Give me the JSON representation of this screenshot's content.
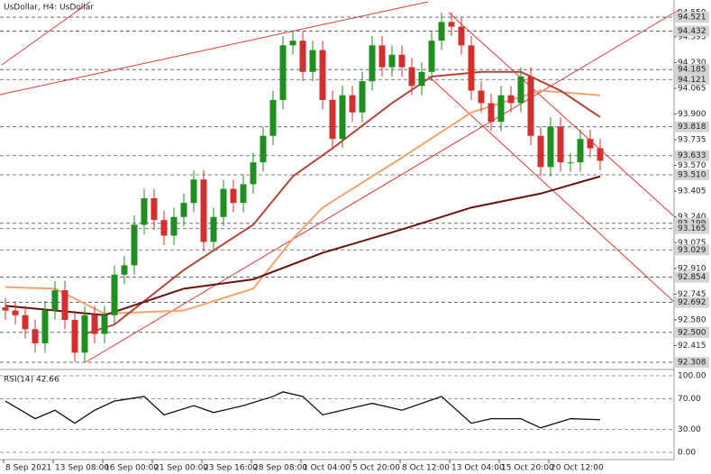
{
  "chart_data": {
    "type": "candlestick",
    "title": "UsDollar, H4:  UsDollar",
    "categories": [
      "8 Sep 2021",
      null,
      null,
      null,
      null,
      "13 Sep 08:00",
      null,
      null,
      null,
      null,
      "16 Sep 00:00",
      null,
      null,
      null,
      null,
      "21 Sep 00:00",
      null,
      null,
      null,
      null,
      "23 Sep 16:00",
      null,
      null,
      null,
      null,
      "28 Sep 08:00",
      null,
      null,
      null,
      null,
      "1 Oct 04:00",
      null,
      null,
      null,
      null,
      "5 Oct 20:00",
      null,
      null,
      null,
      null,
      "8 Oct 12:00",
      null,
      null,
      null,
      null,
      "13 Oct 04:00",
      null,
      null,
      null,
      null,
      "15 Oct 20:00",
      null,
      null,
      null,
      null,
      "20 Oct 12:00",
      null,
      null,
      null,
      null,
      null
    ],
    "open": [
      92.66,
      92.64,
      92.61,
      92.52,
      92.43,
      92.64,
      92.77,
      92.58,
      92.37,
      92.61,
      92.49,
      92.61,
      92.87,
      92.93,
      93.19,
      93.36,
      93.22,
      93.12,
      93.24,
      93.33,
      93.48,
      93.08,
      93.24,
      93.42,
      93.33,
      93.45,
      93.59,
      93.76,
      93.99,
      94.34,
      94.37,
      94.17,
      94.31,
      93.99,
      93.74,
      94.02,
      93.91,
      94.11,
      94.34,
      94.2,
      94.28,
      94.2,
      94.08,
      94.17,
      94.37,
      94.49,
      94.46,
      94.34,
      94.05,
      93.97,
      93.85,
      94.02,
      93.97,
      94.14,
      93.76,
      93.56,
      93.82,
      93.59,
      93.59,
      93.74,
      93.68
    ],
    "high": [
      92.72,
      92.7,
      92.67,
      92.58,
      92.7,
      92.83,
      92.83,
      92.64,
      92.67,
      92.67,
      92.67,
      92.93,
      92.99,
      93.25,
      93.42,
      93.42,
      93.28,
      93.3,
      93.39,
      93.54,
      93.54,
      93.3,
      93.48,
      93.48,
      93.51,
      93.65,
      93.82,
      94.05,
      94.4,
      94.43,
      94.43,
      94.37,
      94.37,
      94.05,
      94.08,
      94.08,
      94.17,
      94.4,
      94.4,
      94.34,
      94.34,
      94.26,
      94.23,
      94.43,
      94.55,
      94.55,
      94.52,
      94.4,
      94.11,
      94.03,
      94.08,
      94.08,
      94.2,
      94.2,
      93.82,
      93.88,
      93.88,
      93.65,
      93.8,
      93.8,
      93.74
    ],
    "low": [
      92.58,
      92.55,
      92.46,
      92.37,
      92.37,
      92.58,
      92.52,
      92.31,
      92.31,
      92.43,
      92.43,
      92.55,
      92.81,
      92.87,
      93.13,
      93.16,
      93.06,
      93.06,
      93.18,
      93.27,
      93.02,
      93.02,
      93.18,
      93.27,
      93.27,
      93.39,
      93.53,
      93.7,
      93.93,
      94.28,
      94.11,
      94.11,
      93.93,
      93.68,
      93.68,
      93.85,
      93.85,
      94.05,
      94.14,
      94.14,
      94.14,
      94.02,
      94.02,
      94.11,
      94.31,
      94.4,
      94.28,
      93.99,
      93.91,
      93.79,
      93.79,
      93.91,
      93.91,
      93.7,
      93.5,
      93.5,
      93.53,
      93.53,
      93.53,
      93.62,
      93.54
    ],
    "close": [
      92.64,
      92.61,
      92.52,
      92.43,
      92.64,
      92.77,
      92.58,
      92.37,
      92.61,
      92.49,
      92.61,
      92.87,
      92.93,
      93.19,
      93.36,
      93.22,
      93.12,
      93.24,
      93.33,
      93.48,
      93.08,
      93.24,
      93.42,
      93.33,
      93.45,
      93.59,
      93.76,
      93.99,
      94.34,
      94.37,
      94.17,
      94.31,
      93.99,
      93.74,
      94.02,
      93.91,
      94.11,
      94.34,
      94.2,
      94.28,
      94.2,
      94.08,
      94.17,
      94.37,
      94.49,
      94.46,
      94.34,
      94.05,
      93.97,
      93.85,
      94.02,
      93.97,
      94.14,
      93.76,
      93.56,
      93.82,
      93.59,
      93.59,
      93.74,
      93.68,
      93.6
    ],
    "up_color": "#1f8f1f",
    "down_color": "#d32f2f",
    "lines": [
      {
        "color": "#f4a36c",
        "x": [
          0,
          5,
          10,
          18,
          25,
          29,
          32,
          40,
          47,
          54,
          60
        ],
        "values": [
          92.79,
          92.78,
          92.62,
          92.64,
          92.78,
          93.1,
          93.3,
          93.62,
          93.91,
          94.05,
          94.02
        ]
      },
      {
        "color": "#b5443a",
        "x": [
          8,
          11,
          18,
          25,
          29,
          33,
          39,
          43,
          48,
          52,
          56,
          60
        ],
        "values": [
          92.49,
          92.55,
          92.9,
          93.19,
          93.5,
          93.68,
          93.97,
          94.14,
          94.17,
          94.17,
          94.05,
          93.88
        ]
      },
      {
        "color": "#6b0f0f",
        "x": [
          0,
          10,
          18,
          25,
          32,
          40,
          47,
          54,
          60
        ],
        "values": [
          92.67,
          92.61,
          92.78,
          92.84,
          93.01,
          93.16,
          93.3,
          93.39,
          93.5
        ]
      }
    ],
    "ylim": [
      92.262,
      94.631
    ],
    "yticks": [
      {
        "value": 94.55,
        "label": "94.550"
      },
      94.395,
      {
        "value": 94.23,
        "label": "94.230"
      },
      94.065,
      {
        "value": 93.9,
        "label": "93.900"
      },
      93.735,
      {
        "value": 93.57,
        "label": "93.570"
      },
      93.405,
      {
        "value": 93.24,
        "label": "93.240"
      },
      93.075,
      {
        "value": 92.91,
        "label": "92.910"
      },
      92.745,
      {
        "value": 92.58,
        "label": "92.580"
      },
      92.415
    ],
    "levels": [
      94.521,
      94.432,
      94.185,
      94.121,
      93.818,
      93.633,
      {
        "value": 93.51,
        "label": "93.510"
      },
      93.199,
      93.165,
      93.029,
      92.854,
      92.692,
      {
        "value": 92.5,
        "label": "92.500"
      },
      92.308
    ],
    "rsi": {
      "title": "RSI(14) 42.66",
      "color": "#111111",
      "x": [
        0,
        3,
        5,
        7,
        9,
        11,
        14,
        16,
        19,
        21,
        24,
        27,
        28,
        30,
        32,
        34,
        37,
        40,
        44,
        47,
        49,
        52,
        54,
        57,
        60
      ],
      "values": [
        67,
        44,
        55,
        38,
        55,
        67,
        73,
        49,
        61,
        52,
        61,
        73,
        79,
        73,
        49,
        55,
        64,
        55,
        73,
        38,
        44,
        44,
        32,
        44,
        42.66
      ],
      "ylim": [
        0,
        100
      ],
      "yticks": [
        {
          "value": 100,
          "label": "100.00"
        },
        {
          "value": 70,
          "label": "70.00"
        },
        {
          "value": 30,
          "label": "30.00"
        },
        {
          "value": 0,
          "label": "0.00"
        }
      ]
    }
  }
}
